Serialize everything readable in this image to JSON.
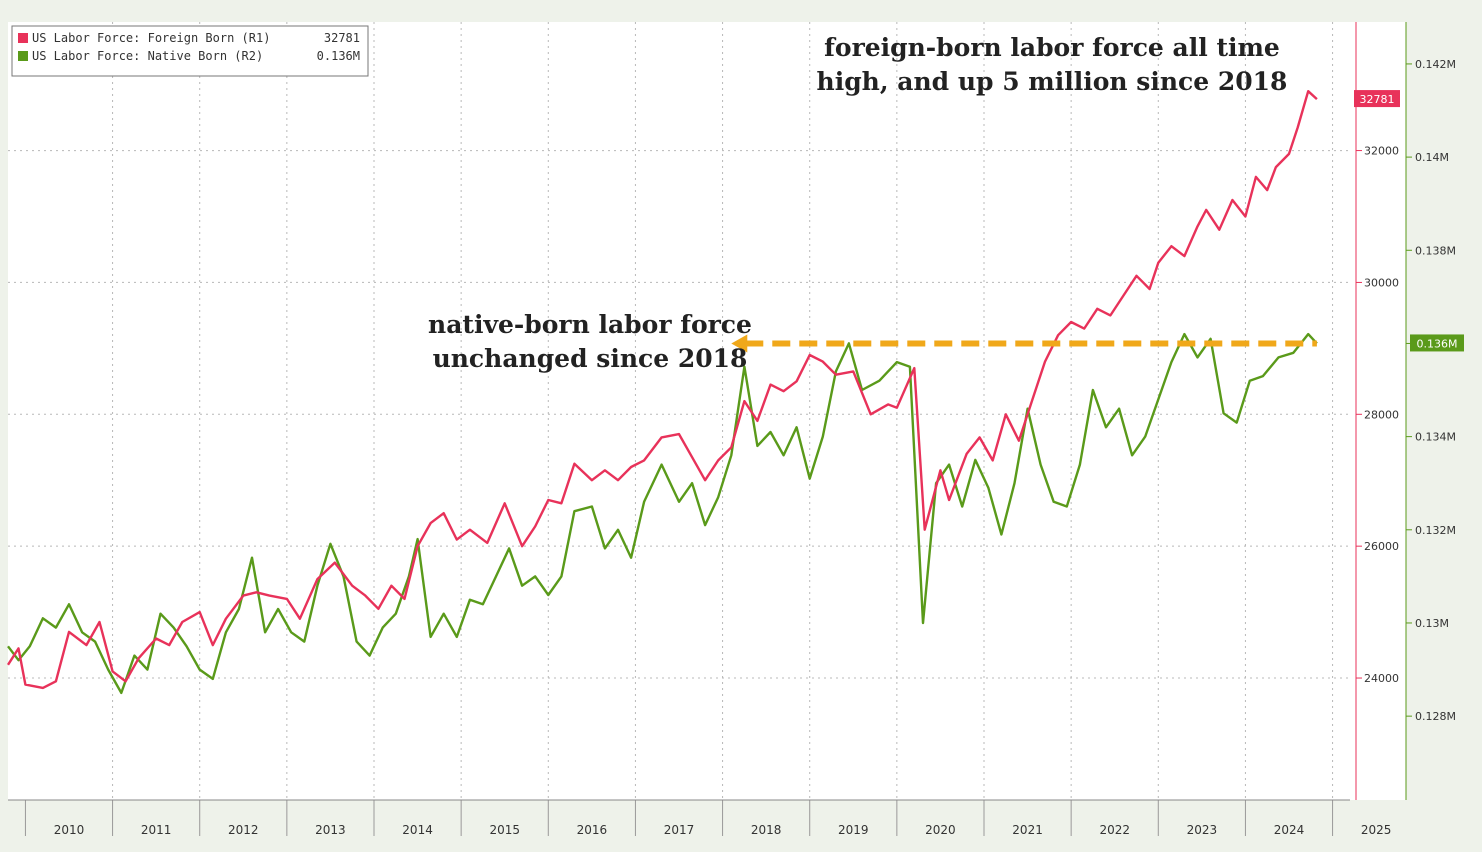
{
  "chart_data": {
    "type": "line",
    "title": "",
    "xlabel": "",
    "x_ticks": [
      "2010",
      "2011",
      "2012",
      "2013",
      "2014",
      "2015",
      "2016",
      "2017",
      "2018",
      "2019",
      "2020",
      "2021",
      "2022",
      "2023",
      "2024",
      "2025"
    ],
    "xlim": [
      2009.8,
      2025.2
    ],
    "grid": true,
    "legend_placement": "top-left",
    "legend": [
      {
        "label": "US Labor Force: Foreign Born (R1)",
        "value": "32781",
        "color": "#e8325a"
      },
      {
        "label": "US Labor Force: Native Born (R2)",
        "value": "0.136M",
        "color": "#5a9a1a"
      }
    ],
    "axes": {
      "r1": {
        "ticks": [
          "24000",
          "26000",
          "28000",
          "30000",
          "32000"
        ],
        "ylim": [
          22150,
          33950
        ],
        "color": "#e8325a"
      },
      "r2": {
        "ticks": [
          "0.128M",
          "0.13M",
          "0.132M",
          "0.134M",
          "0.136M",
          "0.138M",
          "0.14M",
          "0.142M"
        ],
        "ylim": [
          0.1262,
          0.1429
        ],
        "color": "#5a9a1a"
      }
    },
    "series": [
      {
        "name": "US Labor Force: Foreign Born (R1)",
        "axis": "r1",
        "color": "#e8325a",
        "last_value_label": "32781",
        "points": [
          [
            2009.8,
            24200
          ],
          [
            2009.92,
            24450
          ],
          [
            2010.0,
            23900
          ],
          [
            2010.2,
            23850
          ],
          [
            2010.35,
            23950
          ],
          [
            2010.5,
            24700
          ],
          [
            2010.7,
            24500
          ],
          [
            2010.85,
            24850
          ],
          [
            2011.0,
            24100
          ],
          [
            2011.15,
            23950
          ],
          [
            2011.3,
            24300
          ],
          [
            2011.5,
            24600
          ],
          [
            2011.65,
            24500
          ],
          [
            2011.8,
            24850
          ],
          [
            2012.0,
            25000
          ],
          [
            2012.15,
            24500
          ],
          [
            2012.3,
            24900
          ],
          [
            2012.5,
            25250
          ],
          [
            2012.65,
            25300
          ],
          [
            2012.8,
            25250
          ],
          [
            2013.0,
            25200
          ],
          [
            2013.15,
            24900
          ],
          [
            2013.35,
            25500
          ],
          [
            2013.55,
            25750
          ],
          [
            2013.75,
            25400
          ],
          [
            2013.9,
            25250
          ],
          [
            2014.05,
            25050
          ],
          [
            2014.2,
            25400
          ],
          [
            2014.35,
            25200
          ],
          [
            2014.5,
            26000
          ],
          [
            2014.65,
            26350
          ],
          [
            2014.8,
            26500
          ],
          [
            2014.95,
            26100
          ],
          [
            2015.1,
            26250
          ],
          [
            2015.3,
            26050
          ],
          [
            2015.5,
            26650
          ],
          [
            2015.7,
            26000
          ],
          [
            2015.85,
            26300
          ],
          [
            2016.0,
            26700
          ],
          [
            2016.15,
            26650
          ],
          [
            2016.3,
            27250
          ],
          [
            2016.5,
            27000
          ],
          [
            2016.65,
            27150
          ],
          [
            2016.8,
            27000
          ],
          [
            2016.95,
            27200
          ],
          [
            2017.1,
            27300
          ],
          [
            2017.3,
            27650
          ],
          [
            2017.5,
            27700
          ],
          [
            2017.65,
            27350
          ],
          [
            2017.8,
            27000
          ],
          [
            2017.95,
            27300
          ],
          [
            2018.1,
            27500
          ],
          [
            2018.25,
            28200
          ],
          [
            2018.4,
            27900
          ],
          [
            2018.55,
            28450
          ],
          [
            2018.7,
            28350
          ],
          [
            2018.85,
            28500
          ],
          [
            2019.0,
            28900
          ],
          [
            2019.15,
            28800
          ],
          [
            2019.3,
            28600
          ],
          [
            2019.5,
            28650
          ],
          [
            2019.7,
            28000
          ],
          [
            2019.9,
            28150
          ],
          [
            2020.0,
            28100
          ],
          [
            2020.2,
            28700
          ],
          [
            2020.32,
            26250
          ],
          [
            2020.5,
            27150
          ],
          [
            2020.6,
            26700
          ],
          [
            2020.8,
            27400
          ],
          [
            2020.95,
            27650
          ],
          [
            2021.1,
            27300
          ],
          [
            2021.25,
            28000
          ],
          [
            2021.4,
            27600
          ],
          [
            2021.55,
            28200
          ],
          [
            2021.7,
            28800
          ],
          [
            2021.85,
            29200
          ],
          [
            2022.0,
            29400
          ],
          [
            2022.15,
            29300
          ],
          [
            2022.3,
            29600
          ],
          [
            2022.45,
            29500
          ],
          [
            2022.6,
            29800
          ],
          [
            2022.75,
            30100
          ],
          [
            2022.9,
            29900
          ],
          [
            2023.0,
            30300
          ],
          [
            2023.15,
            30550
          ],
          [
            2023.3,
            30400
          ],
          [
            2023.45,
            30850
          ],
          [
            2023.55,
            31100
          ],
          [
            2023.7,
            30800
          ],
          [
            2023.85,
            31250
          ],
          [
            2024.0,
            31000
          ],
          [
            2024.12,
            31600
          ],
          [
            2024.25,
            31400
          ],
          [
            2024.35,
            31750
          ],
          [
            2024.5,
            31950
          ],
          [
            2024.6,
            32350
          ],
          [
            2024.72,
            32900
          ],
          [
            2024.82,
            32781
          ]
        ]
      },
      {
        "name": "US Labor Force: Native Born (R2)",
        "axis": "r2",
        "color": "#5a9a1a",
        "last_value_label": "0.136M",
        "points": [
          [
            2009.8,
            0.1295
          ],
          [
            2009.92,
            0.1292
          ],
          [
            2010.05,
            0.1295
          ],
          [
            2010.2,
            0.1301
          ],
          [
            2010.35,
            0.1299
          ],
          [
            2010.5,
            0.1304
          ],
          [
            2010.65,
            0.1298
          ],
          [
            2010.8,
            0.1296
          ],
          [
            2010.95,
            0.129
          ],
          [
            2011.1,
            0.1285
          ],
          [
            2011.25,
            0.1293
          ],
          [
            2011.4,
            0.129
          ],
          [
            2011.55,
            0.1302
          ],
          [
            2011.7,
            0.1299
          ],
          [
            2011.85,
            0.1295
          ],
          [
            2012.0,
            0.129
          ],
          [
            2012.15,
            0.1288
          ],
          [
            2012.3,
            0.1298
          ],
          [
            2012.45,
            0.1303
          ],
          [
            2012.6,
            0.1314
          ],
          [
            2012.75,
            0.1298
          ],
          [
            2012.9,
            0.1303
          ],
          [
            2013.05,
            0.1298
          ],
          [
            2013.2,
            0.1296
          ],
          [
            2013.35,
            0.1308
          ],
          [
            2013.5,
            0.1317
          ],
          [
            2013.65,
            0.131
          ],
          [
            2013.8,
            0.1296
          ],
          [
            2013.95,
            0.1293
          ],
          [
            2014.1,
            0.1299
          ],
          [
            2014.25,
            0.1302
          ],
          [
            2014.4,
            0.131
          ],
          [
            2014.5,
            0.1318
          ],
          [
            2014.65,
            0.1297
          ],
          [
            2014.8,
            0.1302
          ],
          [
            2014.95,
            0.1297
          ],
          [
            2015.1,
            0.1305
          ],
          [
            2015.25,
            0.1304
          ],
          [
            2015.4,
            0.131
          ],
          [
            2015.55,
            0.1316
          ],
          [
            2015.7,
            0.1308
          ],
          [
            2015.85,
            0.131
          ],
          [
            2016.0,
            0.1306
          ],
          [
            2016.15,
            0.131
          ],
          [
            2016.3,
            0.1324
          ],
          [
            2016.5,
            0.1325
          ],
          [
            2016.65,
            0.1316
          ],
          [
            2016.8,
            0.132
          ],
          [
            2016.95,
            0.1314
          ],
          [
            2017.1,
            0.1326
          ],
          [
            2017.3,
            0.1334
          ],
          [
            2017.5,
            0.1326
          ],
          [
            2017.65,
            0.133
          ],
          [
            2017.8,
            0.1321
          ],
          [
            2017.95,
            0.1327
          ],
          [
            2018.1,
            0.1336
          ],
          [
            2018.25,
            0.1355
          ],
          [
            2018.4,
            0.1338
          ],
          [
            2018.55,
            0.1341
          ],
          [
            2018.7,
            0.1336
          ],
          [
            2018.85,
            0.1342
          ],
          [
            2019.0,
            0.1331
          ],
          [
            2019.15,
            0.134
          ],
          [
            2019.3,
            0.1354
          ],
          [
            2019.45,
            0.136
          ],
          [
            2019.6,
            0.135
          ],
          [
            2019.8,
            0.1352
          ],
          [
            2020.0,
            0.1356
          ],
          [
            2020.15,
            0.1355
          ],
          [
            2020.3,
            0.13
          ],
          [
            2020.45,
            0.133
          ],
          [
            2020.6,
            0.1334
          ],
          [
            2020.75,
            0.1325
          ],
          [
            2020.9,
            0.1335
          ],
          [
            2021.05,
            0.1329
          ],
          [
            2021.2,
            0.1319
          ],
          [
            2021.35,
            0.133
          ],
          [
            2021.5,
            0.1346
          ],
          [
            2021.65,
            0.1334
          ],
          [
            2021.8,
            0.1326
          ],
          [
            2021.95,
            0.1325
          ],
          [
            2022.1,
            0.1334
          ],
          [
            2022.25,
            0.135
          ],
          [
            2022.4,
            0.1342
          ],
          [
            2022.55,
            0.1346
          ],
          [
            2022.7,
            0.1336
          ],
          [
            2022.85,
            0.134
          ],
          [
            2023.0,
            0.1348
          ],
          [
            2023.15,
            0.1356
          ],
          [
            2023.3,
            0.1362
          ],
          [
            2023.45,
            0.1357
          ],
          [
            2023.6,
            0.1361
          ],
          [
            2023.75,
            0.1345
          ],
          [
            2023.9,
            0.1343
          ],
          [
            2024.05,
            0.1352
          ],
          [
            2024.2,
            0.1353
          ],
          [
            2024.38,
            0.1357
          ],
          [
            2024.55,
            0.1358
          ],
          [
            2024.72,
            0.1362
          ],
          [
            2024.82,
            0.136
          ]
        ]
      }
    ],
    "reference_line": {
      "from_x": 2018.1,
      "to_x": 2024.82,
      "value": 0.136,
      "axis": "r2",
      "color": "#f0a81a",
      "style": "dashed-arrow"
    },
    "annotations": [
      {
        "lines": [
          "foreign-born labor force all time",
          "high, and up 5 million since 2018"
        ]
      },
      {
        "lines": [
          "native-born labor force",
          "unchanged since 2018"
        ]
      }
    ]
  }
}
